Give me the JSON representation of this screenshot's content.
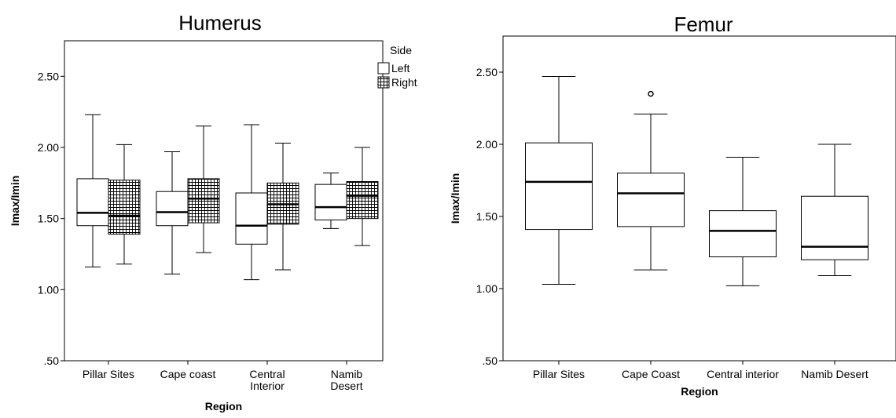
{
  "chart_data": [
    {
      "type": "boxplot",
      "title": "Humerus",
      "xlabel": "Region",
      "ylabel": "Imax/Imin",
      "ylim": [
        0.5,
        2.75
      ],
      "yticks": [
        ".50",
        "1.00",
        "1.50",
        "2.00",
        "2.50"
      ],
      "ytick_values": [
        0.5,
        1.0,
        1.5,
        2.0,
        2.5
      ],
      "categories": [
        {
          "label_lines": [
            "Pillar Sites"
          ]
        },
        {
          "label_lines": [
            "Cape coast"
          ]
        },
        {
          "label_lines": [
            "Central",
            "Interior"
          ]
        },
        {
          "label_lines": [
            "Namib",
            "Desert"
          ]
        }
      ],
      "legend": {
        "title": "Side",
        "placement": "right",
        "entries": [
          {
            "label": "Left",
            "pattern": "plain"
          },
          {
            "label": "Right",
            "pattern": "grid"
          }
        ]
      },
      "series": [
        {
          "name": "Left",
          "pattern": "plain",
          "boxes": [
            {
              "min": 1.16,
              "q1": 1.45,
              "median": 1.54,
              "q3": 1.78,
              "max": 2.23
            },
            {
              "min": 1.11,
              "q1": 1.45,
              "median": 1.545,
              "q3": 1.69,
              "max": 1.97
            },
            {
              "min": 1.07,
              "q1": 1.32,
              "median": 1.45,
              "q3": 1.68,
              "max": 2.16
            },
            {
              "min": 1.43,
              "q1": 1.49,
              "median": 1.58,
              "q3": 1.74,
              "max": 1.82
            }
          ]
        },
        {
          "name": "Right",
          "pattern": "grid",
          "boxes": [
            {
              "min": 1.18,
              "q1": 1.39,
              "median": 1.52,
              "q3": 1.77,
              "max": 2.02
            },
            {
              "min": 1.26,
              "q1": 1.47,
              "median": 1.64,
              "q3": 1.78,
              "max": 2.15
            },
            {
              "min": 1.14,
              "q1": 1.46,
              "median": 1.6,
              "q3": 1.75,
              "max": 2.03
            },
            {
              "min": 1.31,
              "q1": 1.5,
              "median": 1.66,
              "q3": 1.76,
              "max": 2.0
            }
          ]
        }
      ]
    },
    {
      "type": "boxplot",
      "title": "Femur",
      "xlabel": "Region",
      "ylabel": "Imax/Imin",
      "ylim": [
        0.5,
        2.75
      ],
      "yticks": [
        ".50",
        "1.00",
        "1.50",
        "2.00",
        "2.50"
      ],
      "ytick_values": [
        0.5,
        1.0,
        1.5,
        2.0,
        2.5
      ],
      "categories": [
        {
          "label_lines": [
            "Pillar Sites"
          ]
        },
        {
          "label_lines": [
            "Cape Coast"
          ]
        },
        {
          "label_lines": [
            "Central interior"
          ]
        },
        {
          "label_lines": [
            "Namib Desert"
          ]
        }
      ],
      "series": [
        {
          "name": "",
          "pattern": "plain",
          "boxes": [
            {
              "min": 1.03,
              "q1": 1.41,
              "median": 1.74,
              "q3": 2.01,
              "max": 2.47
            },
            {
              "min": 1.13,
              "q1": 1.43,
              "median": 1.66,
              "q3": 1.8,
              "max": 2.21,
              "outliers": [
                2.35
              ]
            },
            {
              "min": 1.02,
              "q1": 1.22,
              "median": 1.4,
              "q3": 1.54,
              "max": 1.91
            },
            {
              "min": 1.09,
              "q1": 1.2,
              "median": 1.29,
              "q3": 1.64,
              "max": 2.0
            }
          ]
        }
      ]
    }
  ]
}
